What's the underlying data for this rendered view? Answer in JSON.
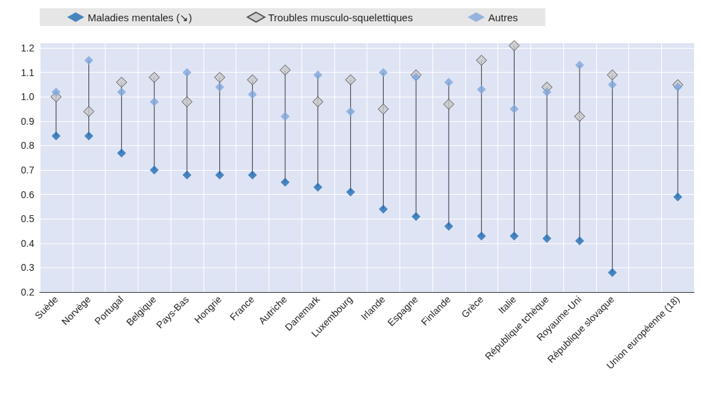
{
  "chart_data": {
    "type": "scatter",
    "categories": [
      "Suède",
      "Norvège",
      "Portugal",
      "Belgique",
      "Pays-Bas",
      "Hongrie",
      "France",
      "Autriche",
      "Danemark",
      "Luxembourg",
      "Irlande",
      "Espagne",
      "Finlande",
      "Grèce",
      "Italie",
      "République tchèque",
      "Royaume-Uni",
      "République slovaque",
      null,
      "Union européenne (18)"
    ],
    "series": [
      {
        "name": "Maladies mentales (↘)",
        "color": "#1f6db5",
        "values": [
          0.84,
          0.84,
          0.77,
          0.7,
          0.68,
          0.68,
          0.68,
          0.65,
          0.63,
          0.61,
          0.54,
          0.51,
          0.47,
          0.43,
          0.43,
          0.42,
          0.41,
          0.28,
          null,
          0.59
        ]
      },
      {
        "name": "Troubles musculo-squelettiques",
        "color": "#c8c8c8",
        "values": [
          1.0,
          0.94,
          1.06,
          1.08,
          0.98,
          1.08,
          1.07,
          1.11,
          0.98,
          1.07,
          0.95,
          1.09,
          0.97,
          1.15,
          1.21,
          1.04,
          0.92,
          1.09,
          null,
          1.05
        ]
      },
      {
        "name": "Autres",
        "color": "#7fa6dc",
        "values": [
          1.02,
          1.15,
          1.02,
          0.98,
          1.1,
          1.04,
          1.01,
          0.92,
          1.09,
          0.94,
          1.1,
          1.08,
          1.06,
          1.03,
          0.95,
          1.02,
          1.13,
          1.05,
          null,
          1.04
        ]
      }
    ],
    "ylim": [
      0.2,
      1.22
    ],
    "yticks": [
      0.2,
      0.3,
      0.4,
      0.5,
      0.6,
      0.7,
      0.8,
      0.9,
      {
        "value": 1.0,
        "label": "1.0"
      },
      1.1,
      1.2
    ],
    "grid": true,
    "legend": "top",
    "marker": "diamond"
  }
}
